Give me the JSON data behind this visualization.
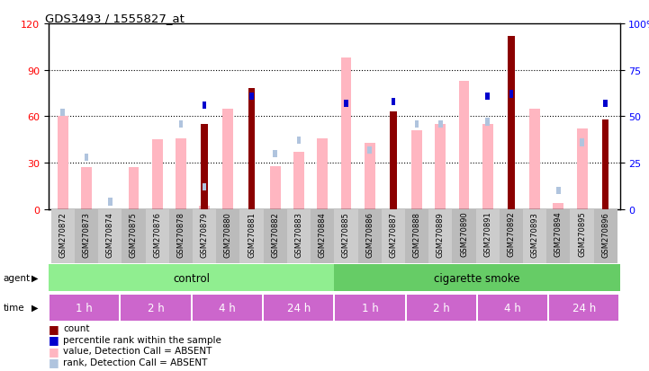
{
  "title": "GDS3493 / 1555827_at",
  "samples": [
    "GSM270872",
    "GSM270873",
    "GSM270874",
    "GSM270875",
    "GSM270876",
    "GSM270878",
    "GSM270879",
    "GSM270880",
    "GSM270881",
    "GSM270882",
    "GSM270883",
    "GSM270884",
    "GSM270885",
    "GSM270886",
    "GSM270887",
    "GSM270888",
    "GSM270889",
    "GSM270890",
    "GSM270891",
    "GSM270892",
    "GSM270893",
    "GSM270894",
    "GSM270895",
    "GSM270896"
  ],
  "count_values": [
    0,
    0,
    0,
    0,
    0,
    0,
    55,
    0,
    78,
    0,
    0,
    0,
    0,
    0,
    63,
    0,
    0,
    0,
    0,
    112,
    0,
    0,
    0,
    58
  ],
  "percentile_rank": [
    null,
    null,
    null,
    null,
    null,
    null,
    56,
    null,
    61,
    null,
    null,
    null,
    57,
    null,
    58,
    null,
    null,
    null,
    61,
    62,
    null,
    null,
    null,
    57
  ],
  "value_absent": [
    60,
    27,
    0,
    27,
    45,
    46,
    2,
    65,
    0,
    28,
    37,
    46,
    98,
    43,
    0,
    51,
    55,
    83,
    55,
    0,
    65,
    4,
    52,
    0
  ],
  "rank_absent": [
    52,
    28,
    4,
    0,
    0,
    46,
    12,
    0,
    0,
    30,
    37,
    0,
    0,
    32,
    0,
    46,
    46,
    0,
    47,
    0,
    0,
    10,
    36,
    0
  ],
  "agent_groups": [
    {
      "label": "control",
      "color": "#90EE90",
      "start": 0,
      "end": 12
    },
    {
      "label": "cigarette smoke",
      "color": "#66CC66",
      "start": 12,
      "end": 24
    }
  ],
  "time_groups": [
    {
      "label": "1 h",
      "start": 0,
      "end": 3
    },
    {
      "label": "2 h",
      "start": 3,
      "end": 6
    },
    {
      "label": "4 h",
      "start": 6,
      "end": 9
    },
    {
      "label": "24 h",
      "start": 9,
      "end": 12
    },
    {
      "label": "1 h",
      "start": 12,
      "end": 15
    },
    {
      "label": "2 h",
      "start": 15,
      "end": 18
    },
    {
      "label": "4 h",
      "start": 18,
      "end": 21
    },
    {
      "label": "24 h",
      "start": 21,
      "end": 24
    }
  ],
  "ylim_left": [
    0,
    120
  ],
  "ylim_right": [
    0,
    100
  ],
  "yticks_left": [
    0,
    30,
    60,
    90,
    120
  ],
  "yticks_right": [
    0,
    25,
    50,
    75,
    100
  ],
  "ytick_labels_right": [
    "0",
    "25",
    "50",
    "75",
    "100%"
  ],
  "color_count": "#8B0000",
  "color_percentile": "#0000CD",
  "color_value_absent": "#FFB6C1",
  "color_rank_absent": "#B0C4DE",
  "time_color_light": "#DD88DD",
  "time_color_dark": "#CC55CC"
}
